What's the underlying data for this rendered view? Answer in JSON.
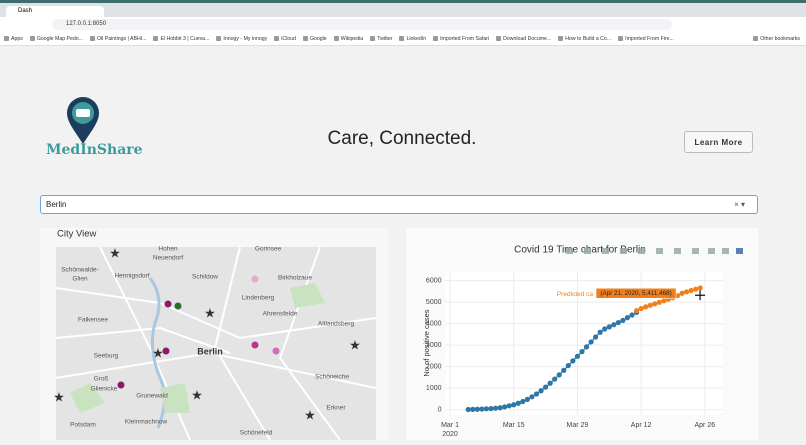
{
  "browser": {
    "tab_title": "Dash",
    "url": "127.0.0.1:8050",
    "bookmarks": [
      "Apps",
      "Google Map Pedo...",
      "Oil Paintings | ABHI...",
      "El Hobbit 3 | Cueva...",
      "Innogy - My innogy",
      "iCloud",
      "Google",
      "Wikipedia",
      "Twitter",
      "LinkedIn",
      "Imported From Safari",
      "Download Docume...",
      "How to Build a Co...",
      "Imported From Fire...",
      "Other bookmarks"
    ]
  },
  "header": {
    "brand": "MedInShare",
    "tagline": "Care, Connected.",
    "button": "Learn More"
  },
  "dropdown": {
    "value": "Berlin"
  },
  "map": {
    "title": "City View",
    "labels": [
      "Hohen",
      "Neuendorf",
      "Gorinsee",
      "Schönwalde-",
      "Glien",
      "Hennigsdorf",
      "Schildow",
      "Birkholzaue",
      "Lindenberg",
      "Ahrensfelde",
      "Falkensee",
      "Altlandsberg",
      "Seeburg",
      "Berlin",
      "Groß",
      "Glienicke",
      "Grunewald",
      "Schöneiche",
      "Erkner",
      "Kleinmachnow",
      "Potsdam",
      "Schönefeld"
    ]
  },
  "chart_data": {
    "type": "scatter",
    "title": "Covid 19 Time chart for Berlin",
    "y_label": "No of positive cases",
    "x_year": "2020",
    "x": [
      "2020-03-05",
      "2020-03-06",
      "2020-03-07",
      "2020-03-08",
      "2020-03-09",
      "2020-03-10",
      "2020-03-11",
      "2020-03-12",
      "2020-03-13",
      "2020-03-14",
      "2020-03-15",
      "2020-03-16",
      "2020-03-17",
      "2020-03-18",
      "2020-03-19",
      "2020-03-20",
      "2020-03-21",
      "2020-03-22",
      "2020-03-23",
      "2020-03-24",
      "2020-03-25",
      "2020-03-26",
      "2020-03-27",
      "2020-03-28",
      "2020-03-29",
      "2020-03-30",
      "2020-03-31",
      "2020-04-01",
      "2020-04-02",
      "2020-04-03",
      "2020-04-04",
      "2020-04-05",
      "2020-04-06",
      "2020-04-07",
      "2020-04-08",
      "2020-04-09",
      "2020-04-10",
      "2020-04-11",
      "2020-04-12",
      "2020-04-13",
      "2020-04-14",
      "2020-04-15",
      "2020-04-16",
      "2020-04-17",
      "2020-04-18",
      "2020-04-19",
      "2020-04-20",
      "2020-04-21",
      "2020-04-22",
      "2020-04-23",
      "2020-04-24",
      "2020-04-25"
    ],
    "series": [
      {
        "color": "#2e75a8",
        "values": [
          10,
          15,
          20,
          30,
          40,
          50,
          70,
          90,
          130,
          180,
          230,
          300,
          380,
          480,
          600,
          730,
          880,
          1050,
          1230,
          1420,
          1620,
          1830,
          2050,
          2270,
          2480,
          2700,
          2920,
          3150,
          3380,
          3600,
          3750,
          3850,
          3950,
          4050,
          4150,
          4280,
          4400,
          4520,
          null,
          null,
          null,
          null,
          null,
          null,
          null,
          null,
          null,
          null,
          null,
          null,
          null,
          null
        ]
      },
      {
        "color": "#f0801f",
        "values": [
          null,
          null,
          null,
          null,
          null,
          null,
          null,
          null,
          null,
          null,
          null,
          null,
          null,
          null,
          null,
          null,
          null,
          null,
          null,
          null,
          null,
          null,
          null,
          null,
          null,
          null,
          null,
          null,
          null,
          null,
          null,
          null,
          null,
          null,
          null,
          null,
          null,
          4600,
          4700,
          4780,
          4850,
          4920,
          4990,
          5060,
          5130,
          5200,
          5300,
          5411.468,
          5480,
          5540,
          5600,
          5660
        ]
      }
    ],
    "hover": {
      "name": "Predicted ca",
      "text": "(Apr 21, 2020, 5,411.468)"
    },
    "xlim": [
      "2020-02-29",
      "2020-04-30"
    ],
    "xticks": [
      {
        "value": "2020-03-01",
        "label": "Mar 1"
      },
      {
        "value": "2020-03-15",
        "label": "Mar 15"
      },
      {
        "value": "2020-03-29",
        "label": "Mar 29"
      },
      {
        "value": "2020-04-12",
        "label": "Apr 12"
      },
      {
        "value": "2020-04-26",
        "label": "Apr 26"
      }
    ],
    "ylim": [
      -200,
      6400
    ],
    "yticks": [
      0,
      1000,
      2000,
      3000,
      4000,
      5000,
      6000
    ],
    "grid": true
  }
}
